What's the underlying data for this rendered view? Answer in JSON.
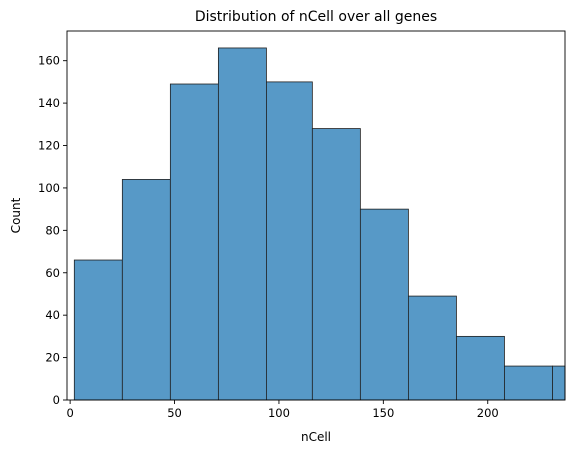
{
  "chart_data": {
    "type": "bar",
    "title": "Distribution of nCell over all genes",
    "xlabel": "nCell",
    "ylabel": "Count",
    "xlim": [
      -1.5,
      237
    ],
    "ylim": [
      0,
      174
    ],
    "xticks": [
      0,
      50,
      100,
      150,
      200
    ],
    "yticks": [
      0,
      20,
      40,
      60,
      80,
      100,
      120,
      140,
      160
    ],
    "grid": false,
    "bar_color": "#5799c7",
    "edge_color": "#1f1f1f",
    "bins": [
      {
        "x0": 2,
        "x1": 25,
        "count": 66
      },
      {
        "x0": 25,
        "x1": 48,
        "count": 104
      },
      {
        "x0": 48,
        "x1": 71,
        "count": 149
      },
      {
        "x0": 71,
        "x1": 94,
        "count": 166
      },
      {
        "x0": 94,
        "x1": 116,
        "count": 150
      },
      {
        "x0": 116,
        "x1": 139,
        "count": 128
      },
      {
        "x0": 139,
        "x1": 162,
        "count": 90
      },
      {
        "x0": 162,
        "x1": 185,
        "count": 49
      },
      {
        "x0": 185,
        "x1": 208,
        "count": 30
      },
      {
        "x0": 208,
        "x1": 231,
        "count": 16
      },
      {
        "x0": 231,
        "x1": 237,
        "count": 16
      }
    ]
  }
}
